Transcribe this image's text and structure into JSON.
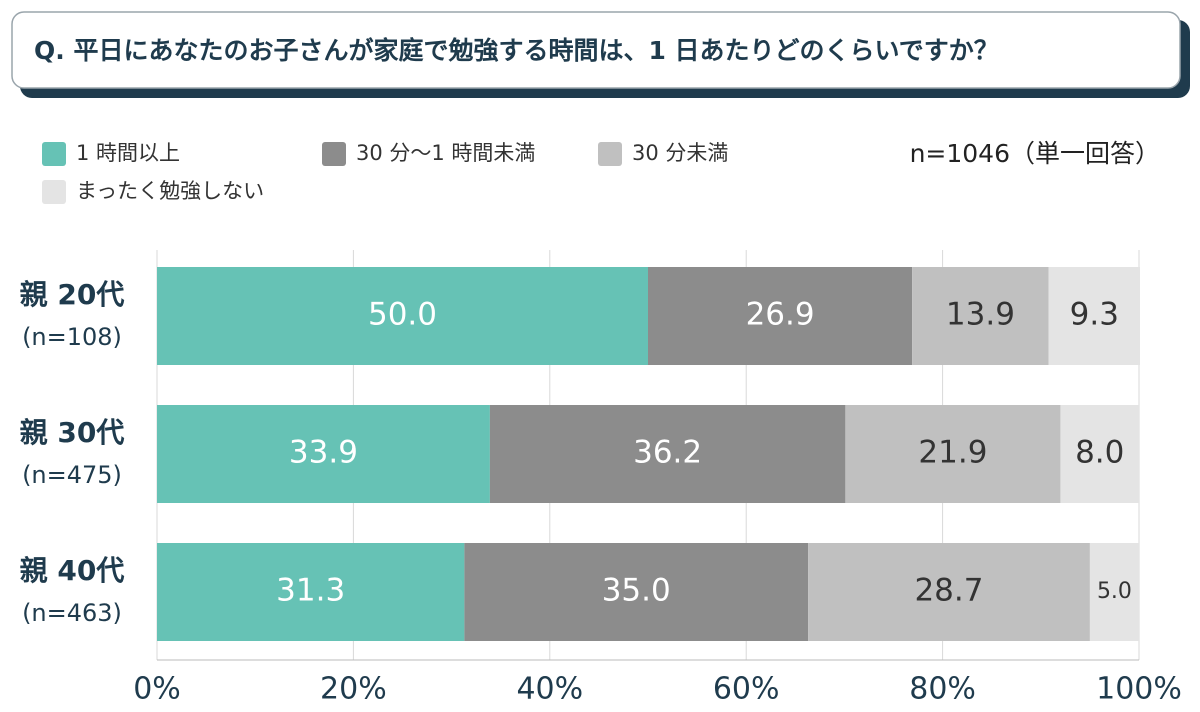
{
  "chart_data": {
    "type": "stacked-barh",
    "title": "Q. 平日にあなたのお子さんが家庭で勉強する時間は、1 日あたりどのくらいですか？",
    "note": "n=1046（単一回答）",
    "categories": [
      "親 20代",
      "親 30代",
      "親 40代"
    ],
    "category_sublabels": [
      "(n=108)",
      "(n=475)",
      "(n=463)"
    ],
    "series": [
      {
        "name": "1 時間以上",
        "color": "#66c2b5",
        "values": [
          50.0,
          33.9,
          31.3
        ],
        "value_labels": [
          "50.0",
          "33.9",
          "31.3"
        ]
      },
      {
        "name": "30 分～1 時間未満",
        "color": "#8c8c8c",
        "values": [
          26.9,
          36.2,
          35.0
        ],
        "value_labels": [
          "26.9",
          "36.2",
          "35.0"
        ]
      },
      {
        "name": "30 分未満",
        "color": "#c0c0c0",
        "values": [
          13.9,
          21.9,
          28.7
        ],
        "value_labels": [
          "13.9",
          "21.9",
          "28.7"
        ]
      },
      {
        "name": "まったく勉強しない",
        "color": "#e4e4e4",
        "values": [
          9.3,
          8.0,
          5.0
        ],
        "value_labels": [
          "9.3",
          "8.0",
          "5.0"
        ]
      }
    ],
    "xlim": [
      0,
      100
    ],
    "xticks": [
      {
        "value": 0,
        "label": "0%"
      },
      {
        "value": 20,
        "label": "20%"
      },
      {
        "value": 40,
        "label": "40%"
      },
      {
        "value": 60,
        "label": "60%"
      },
      {
        "value": 80,
        "label": "80%"
      },
      {
        "value": 100,
        "label": "100%"
      }
    ],
    "grid": true
  }
}
